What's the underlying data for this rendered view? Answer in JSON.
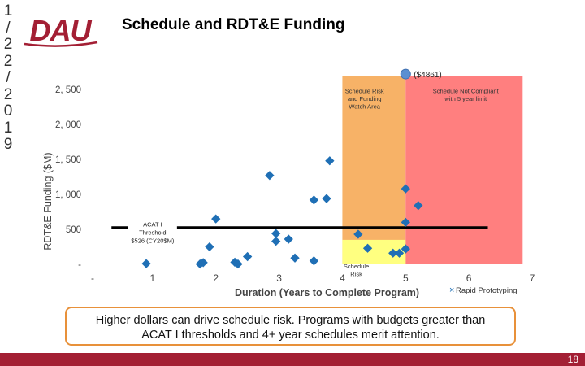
{
  "slide": {
    "date_chars": [
      "1",
      "/",
      "2",
      "2",
      "/",
      "2",
      "0",
      "1",
      "9"
    ],
    "title": "Schedule and RDT&E Funding",
    "logo_text": "DAU",
    "callout_line1": "Higher dollars can drive schedule risk. Programs with budgets greater than",
    "callout_line2": "ACAT I thresholds and 4+ year schedules merit attention.",
    "page_number": "18"
  },
  "colors": {
    "brand": "#a31f34",
    "watch_zone": "#f7b267",
    "noncompliant_zone": "#ff7f7f",
    "risk_zone": "#ffff80",
    "marker": "#1f6fb5",
    "callout_border": "#e8913a"
  },
  "chart_data": {
    "type": "scatter",
    "xlabel": "Duration (Years to Complete Program)",
    "ylabel": "RDT&E Funding ($M)",
    "xlim": [
      0,
      7
    ],
    "ylim": [
      0,
      2500
    ],
    "x_ticks": [
      {
        "v": 0,
        "label": "-"
      },
      {
        "v": 1,
        "label": "1"
      },
      {
        "v": 2,
        "label": "2"
      },
      {
        "v": 3,
        "label": "3"
      },
      {
        "v": 4,
        "label": "4"
      },
      {
        "v": 5,
        "label": "5"
      },
      {
        "v": 6,
        "label": "6"
      },
      {
        "v": 7,
        "label": "7"
      }
    ],
    "y_ticks": [
      {
        "v": 0,
        "label": "-"
      },
      {
        "v": 500,
        "label": "500"
      },
      {
        "v": 1000,
        "label": "1, 000"
      },
      {
        "v": 1500,
        "label": "1, 500"
      },
      {
        "v": 2000,
        "label": "2, 000"
      },
      {
        "v": 2500,
        "label": "2, 500"
      }
    ],
    "zones": [
      {
        "name": "watch",
        "x0": 4,
        "x1": 5,
        "y0": 0,
        "y1": 2700,
        "label_lines": [
          "Schedule Risk",
          "and Funding",
          "Watch Area"
        ],
        "label_x": 4.35,
        "label_y": 2450
      },
      {
        "name": "noncompliant",
        "x0": 5,
        "x1": 6.85,
        "y0": 0,
        "y1": 2700,
        "label_lines": [
          "Schedule Not Compliant",
          "with 5 year limit"
        ],
        "label_x": 5.95,
        "label_y": 2450
      },
      {
        "name": "risk",
        "x0": 4,
        "x1": 5,
        "y0": 0,
        "y1": 350,
        "label_lines": [
          "Schedule",
          "Risk"
        ],
        "label_x": 4.22,
        "label_y": -60
      }
    ],
    "threshold": {
      "y": 526,
      "x0": 0.35,
      "x1": 6.3,
      "label_lines": [
        "ACAT I",
        "Threshold",
        "$526 (CY20$M)"
      ],
      "label_x": 1.0,
      "label_y": 520
    },
    "outlier": {
      "x": 5.0,
      "y_label": "($4861)",
      "display_y": 2720
    },
    "points": [
      {
        "x": 0.9,
        "y": 10
      },
      {
        "x": 1.75,
        "y": 5
      },
      {
        "x": 1.8,
        "y": 25
      },
      {
        "x": 1.9,
        "y": 250
      },
      {
        "x": 2.0,
        "y": 650
      },
      {
        "x": 2.3,
        "y": 30
      },
      {
        "x": 2.35,
        "y": 5
      },
      {
        "x": 2.5,
        "y": 110
      },
      {
        "x": 2.85,
        "y": 1270
      },
      {
        "x": 2.95,
        "y": 440
      },
      {
        "x": 2.95,
        "y": 330
      },
      {
        "x": 3.15,
        "y": 360
      },
      {
        "x": 3.25,
        "y": 90
      },
      {
        "x": 3.55,
        "y": 50
      },
      {
        "x": 3.55,
        "y": 920
      },
      {
        "x": 3.75,
        "y": 940
      },
      {
        "x": 3.8,
        "y": 1480
      },
      {
        "x": 4.25,
        "y": 430
      },
      {
        "x": 4.4,
        "y": 230
      },
      {
        "x": 4.8,
        "y": 160
      },
      {
        "x": 4.9,
        "y": 160
      },
      {
        "x": 5.0,
        "y": 220
      },
      {
        "x": 5.0,
        "y": 600
      },
      {
        "x": 5.0,
        "y": 1080
      },
      {
        "x": 5.2,
        "y": 840
      }
    ],
    "legend_entries": [
      {
        "symbol": "×",
        "label": "Rapid Prototyping"
      }
    ]
  }
}
